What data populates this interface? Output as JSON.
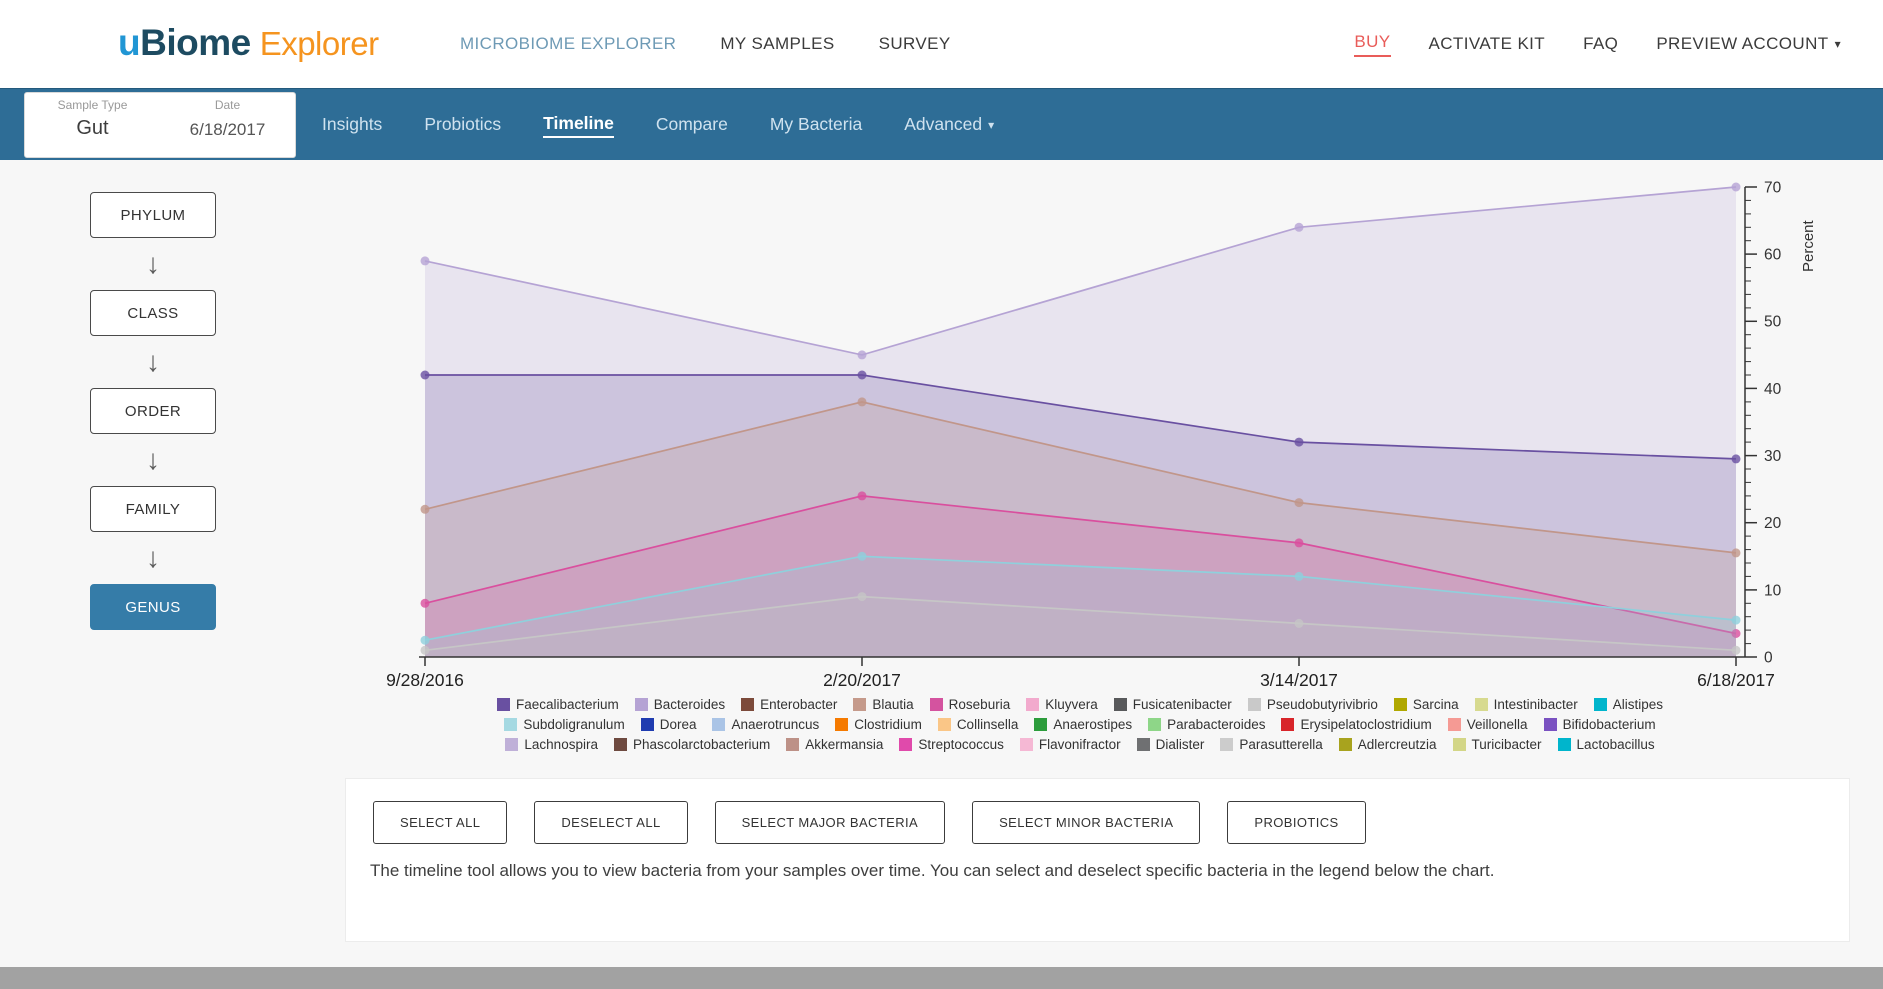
{
  "header": {
    "logo": {
      "u": "u",
      "biome": "Biome",
      "explorer": "Explorer"
    },
    "nav": [
      {
        "label": "MICROBIOME EXPLORER",
        "active": true
      },
      {
        "label": "MY SAMPLES",
        "active": false
      },
      {
        "label": "SURVEY",
        "active": false
      }
    ],
    "right_nav": [
      {
        "label": "BUY",
        "style": "buy"
      },
      {
        "label": "ACTIVATE KIT"
      },
      {
        "label": "FAQ"
      },
      {
        "label": "PREVIEW ACCOUNT",
        "dropdown": true
      }
    ]
  },
  "subnav": {
    "sample_type_label": "Sample Type",
    "sample_type_value": "Gut",
    "date_label": "Date",
    "date_value": "6/18/2017",
    "tabs": [
      {
        "label": "Insights",
        "active": false
      },
      {
        "label": "Probiotics",
        "active": false
      },
      {
        "label": "Timeline",
        "active": true
      },
      {
        "label": "Compare",
        "active": false
      },
      {
        "label": "My Bacteria",
        "active": false
      },
      {
        "label": "Advanced",
        "active": false,
        "dropdown": true
      }
    ]
  },
  "rank_selector": {
    "items": [
      {
        "label": "PHYLUM",
        "active": false
      },
      {
        "label": "CLASS",
        "active": false
      },
      {
        "label": "ORDER",
        "active": false
      },
      {
        "label": "FAMILY",
        "active": false
      },
      {
        "label": "GENUS",
        "active": true
      }
    ]
  },
  "chart_data": {
    "type": "area",
    "x": [
      "9/28/2016",
      "2/20/2017",
      "3/14/2017",
      "6/18/2017"
    ],
    "series": [
      {
        "name": "Bacteroides",
        "color": "#b5a3d4",
        "values": [
          59,
          45,
          64,
          70
        ]
      },
      {
        "name": "Faecalibacterium",
        "color": "#6950a1",
        "values": [
          42,
          42,
          32,
          29.5
        ]
      },
      {
        "name": "Blautia",
        "color": "#c1968a",
        "values": [
          22,
          38,
          23,
          15.5
        ]
      },
      {
        "name": "Roseburia",
        "color": "#d94f9e",
        "values": [
          8,
          24,
          17,
          3.5
        ]
      },
      {
        "name": "Subdoligranulum",
        "color": "#8fd0dc",
        "values": [
          2.5,
          15,
          12,
          5.5
        ]
      },
      {
        "name": "Pseudobutyrivibrio",
        "color": "#c6c6c6",
        "values": [
          1,
          9,
          5,
          1
        ]
      }
    ],
    "ylabel": "Percent",
    "ylim": [
      0,
      70
    ],
    "yticks": [
      0,
      10,
      20,
      30,
      40,
      50,
      60,
      70
    ],
    "legend_position": "bottom",
    "grid": false
  },
  "legend": {
    "rows": [
      [
        {
          "name": "Faecalibacterium",
          "color": "#6950a1"
        },
        {
          "name": "Bacteroides",
          "color": "#b5a3d4"
        },
        {
          "name": "Enterobacter",
          "color": "#7c4a3a"
        },
        {
          "name": "Blautia",
          "color": "#c59a8b"
        },
        {
          "name": "Roseburia",
          "color": "#d4539f"
        },
        {
          "name": "Kluyvera",
          "color": "#f2aacd"
        },
        {
          "name": "Fusicatenibacter",
          "color": "#58595b"
        },
        {
          "name": "Pseudobutyrivibrio",
          "color": "#c9c9c9"
        },
        {
          "name": "Sarcina",
          "color": "#b0a800"
        },
        {
          "name": "Intestinibacter",
          "color": "#d7da8f"
        },
        {
          "name": "Alistipes",
          "color": "#00b5cc"
        }
      ],
      [
        {
          "name": "Subdoligranulum",
          "color": "#a5d9e2"
        },
        {
          "name": "Dorea",
          "color": "#1f3cb0"
        },
        {
          "name": "Anaerotruncus",
          "color": "#aac4e6"
        },
        {
          "name": "Clostridium",
          "color": "#f57a00"
        },
        {
          "name": "Collinsella",
          "color": "#fac687"
        },
        {
          "name": "Anaerostipes",
          "color": "#2c9c3c"
        },
        {
          "name": "Parabacteroides",
          "color": "#8ed688"
        },
        {
          "name": "Erysipelatoclostridium",
          "color": "#d8252a"
        },
        {
          "name": "Veillonella",
          "color": "#f59a94"
        },
        {
          "name": "Bifidobacterium",
          "color": "#7a52c1"
        }
      ],
      [
        {
          "name": "Lachnospira",
          "color": "#bfb0d8"
        },
        {
          "name": "Phascolarctobacterium",
          "color": "#6e4a40"
        },
        {
          "name": "Akkermansia",
          "color": "#bd9187"
        },
        {
          "name": "Streptococcus",
          "color": "#e04aab"
        },
        {
          "name": "Flavonifractor",
          "color": "#f5b8d4"
        },
        {
          "name": "Dialister",
          "color": "#6f7072"
        },
        {
          "name": "Parasutterella",
          "color": "#cccccc"
        },
        {
          "name": "Adlercreutzia",
          "color": "#a8a31e"
        },
        {
          "name": "Turicibacter",
          "color": "#d3d687"
        },
        {
          "name": "Lactobacillus",
          "color": "#00b5cc"
        }
      ]
    ]
  },
  "actions": [
    "SELECT ALL",
    "DESELECT ALL",
    "SELECT MAJOR BACTERIA",
    "SELECT MINOR BACTERIA",
    "PROBIOTICS"
  ],
  "description": "The timeline tool allows you to view bacteria from your samples over time. You can select and deselect specific bacteria in the legend below the chart."
}
